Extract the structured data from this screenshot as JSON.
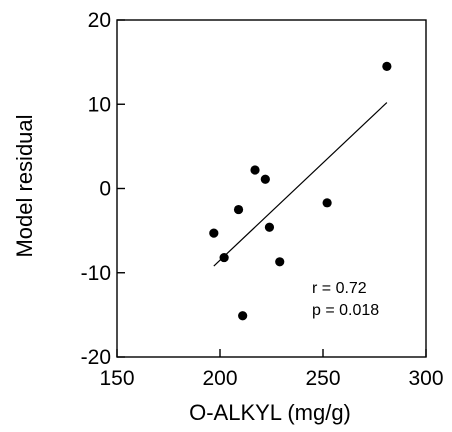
{
  "chart_data": {
    "type": "scatter",
    "title": "",
    "xlabel": "O-ALKYL (mg/g)",
    "ylabel": "Model residual",
    "xlim": [
      150,
      300
    ],
    "ylim": [
      -20,
      20
    ],
    "xticks": [
      150,
      200,
      250,
      300
    ],
    "yticks": [
      -20,
      -10,
      0,
      10,
      20
    ],
    "xtick_labels": [
      "150",
      "200",
      "250",
      "300"
    ],
    "ytick_labels": [
      "-20",
      "-10",
      "0",
      "10",
      "20"
    ],
    "grid": false,
    "series": [
      {
        "x": [
          197,
          202,
          209,
          211,
          217,
          222,
          224,
          229,
          252,
          281
        ],
        "y": [
          -5.3,
          -8.2,
          -2.5,
          -15.1,
          2.2,
          1.1,
          -4.6,
          -8.7,
          -1.7,
          14.5
        ]
      }
    ],
    "fit_line": {
      "x": [
        197,
        281
      ],
      "y": [
        -9.2,
        10.2
      ]
    },
    "annotations": [
      "r = 0.72",
      "p = 0.018"
    ]
  }
}
